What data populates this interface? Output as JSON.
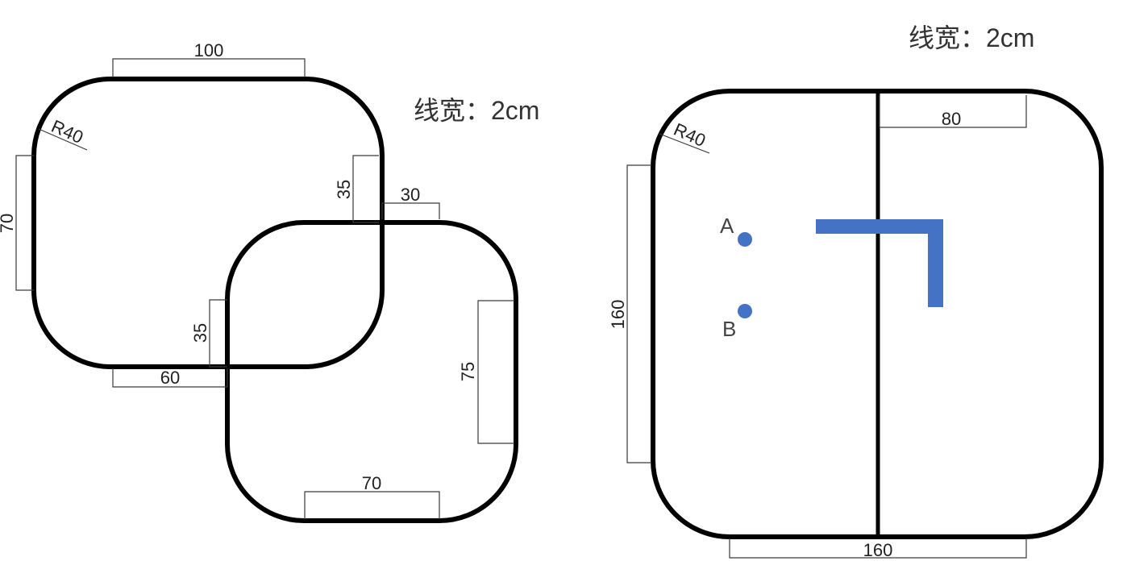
{
  "left_diagram": {
    "line_width_label": "线宽：2cm",
    "radius_label": "R40",
    "dims": {
      "top_width": "100",
      "left_height": "70",
      "overlap_vertical_upper": "35",
      "overlap_horizontal": "30",
      "overlap_vertical_lower": "35",
      "bottom_offset": "60",
      "right_height": "75",
      "bottom_width": "70"
    }
  },
  "right_diagram": {
    "line_width_label": "线宽：2cm",
    "radius_label": "R40",
    "dims": {
      "half_width": "80",
      "height": "160",
      "width": "160"
    },
    "points": {
      "a": "A",
      "b": "B"
    },
    "marker_color": "#4472c4",
    "point_color": "#4472c4"
  }
}
